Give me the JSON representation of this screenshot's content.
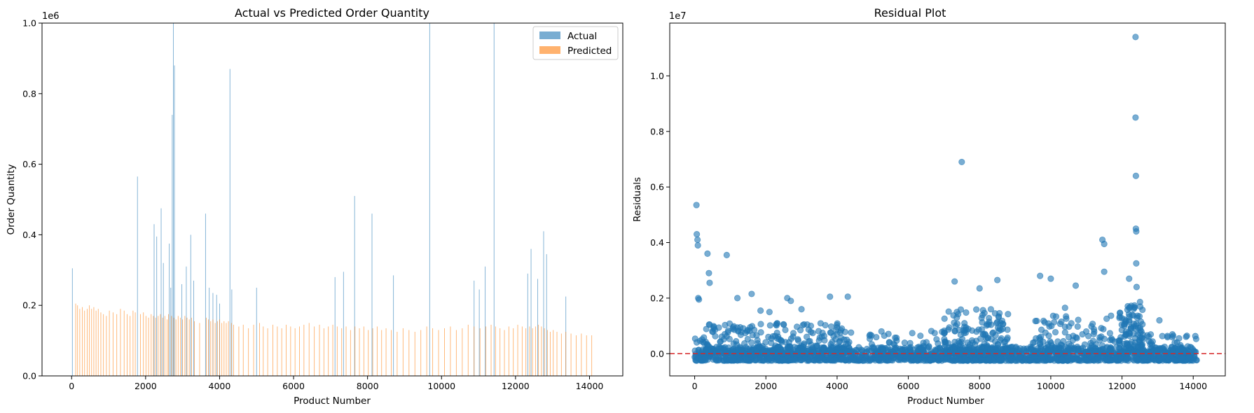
{
  "chart_data": [
    {
      "type": "bar",
      "title": "Actual vs Predicted Order Quantity",
      "xlabel": "Product Number",
      "ylabel": "Order Quantity",
      "xlim": [
        -800,
        14900
      ],
      "ylim": [
        0,
        1000000
      ],
      "y_offset_text": "1e6",
      "x_ticks": [
        0,
        2000,
        4000,
        6000,
        8000,
        10000,
        12000,
        14000
      ],
      "x_tick_labels": [
        "0",
        "2000",
        "4000",
        "6000",
        "8000",
        "10000",
        "12000",
        "14000"
      ],
      "y_ticks": [
        0,
        200000,
        400000,
        600000,
        800000,
        1000000
      ],
      "y_tick_labels": [
        "0.0",
        "0.2",
        "0.4",
        "0.6",
        "0.8",
        "1.0"
      ],
      "legend_position": "top-right",
      "series": [
        {
          "name": "Actual",
          "color": "#1f77b4",
          "opacity": 0.6,
          "x": [
            20,
            1780,
            2230,
            2300,
            2420,
            2480,
            2640,
            2680,
            2720,
            2750,
            2780,
            2980,
            3100,
            3220,
            3300,
            3620,
            3720,
            3820,
            3920,
            4000,
            4280,
            4330,
            5000,
            7120,
            7350,
            7650,
            8120,
            8700,
            9680,
            10880,
            11020,
            11180,
            11420,
            12330,
            12420,
            12600,
            12760,
            12840,
            13360
          ],
          "values": [
            305000,
            565000,
            430000,
            395000,
            475000,
            320000,
            375000,
            250000,
            740000,
            1000000,
            880000,
            260000,
            310000,
            400000,
            270000,
            460000,
            250000,
            235000,
            230000,
            205000,
            870000,
            245000,
            250000,
            280000,
            295000,
            510000,
            460000,
            285000,
            1000000,
            270000,
            245000,
            310000,
            1000000,
            290000,
            360000,
            275000,
            410000,
            345000,
            225000
          ]
        },
        {
          "name": "Predicted",
          "color": "#ff7f0e",
          "opacity": 0.6,
          "x": [
            110,
            160,
            220,
            290,
            350,
            420,
            480,
            540,
            600,
            660,
            720,
            790,
            860,
            940,
            1020,
            1120,
            1220,
            1320,
            1420,
            1500,
            1580,
            1660,
            1720,
            1860,
            1940,
            2010,
            2080,
            2150,
            2210,
            2270,
            2340,
            2400,
            2460,
            2520,
            2580,
            2620,
            2700,
            2760,
            2820,
            2880,
            2940,
            3000,
            3060,
            3120,
            3180,
            3240,
            3320,
            3460,
            3640,
            3700,
            3760,
            3820,
            3880,
            3940,
            4000,
            4060,
            4120,
            4180,
            4240,
            4320,
            4380,
            4520,
            4640,
            4780,
            4920,
            5080,
            5180,
            5300,
            5440,
            5560,
            5680,
            5800,
            5920,
            6040,
            6160,
            6280,
            6420,
            6560,
            6700,
            6820,
            6940,
            7060,
            7180,
            7300,
            7420,
            7540,
            7660,
            7780,
            7900,
            8020,
            8140,
            8260,
            8380,
            8500,
            8640,
            8800,
            8960,
            9120,
            9280,
            9440,
            9600,
            9760,
            9920,
            10080,
            10240,
            10400,
            10560,
            10720,
            10880,
            11040,
            11200,
            11340,
            11460,
            11580,
            11700,
            11820,
            11940,
            12060,
            12180,
            12280,
            12380,
            12460,
            12540,
            12620,
            12700,
            12780,
            12860,
            12940,
            13020,
            13120,
            13240,
            13360,
            13500,
            13640,
            13780,
            13920,
            14060
          ],
          "values": [
            205000,
            200000,
            190000,
            195000,
            185000,
            190000,
            200000,
            190000,
            195000,
            185000,
            190000,
            180000,
            175000,
            170000,
            185000,
            180000,
            175000,
            190000,
            185000,
            175000,
            170000,
            185000,
            180000,
            175000,
            180000,
            170000,
            165000,
            175000,
            170000,
            165000,
            170000,
            175000,
            165000,
            170000,
            160000,
            175000,
            170000,
            165000,
            160000,
            170000,
            165000,
            160000,
            170000,
            165000,
            160000,
            165000,
            155000,
            150000,
            165000,
            160000,
            155000,
            160000,
            150000,
            155000,
            160000,
            150000,
            155000,
            150000,
            155000,
            150000,
            145000,
            140000,
            145000,
            135000,
            145000,
            150000,
            140000,
            135000,
            145000,
            140000,
            135000,
            145000,
            140000,
            135000,
            140000,
            145000,
            150000,
            140000,
            145000,
            135000,
            140000,
            145000,
            140000,
            135000,
            140000,
            130000,
            140000,
            135000,
            140000,
            130000,
            135000,
            140000,
            130000,
            135000,
            130000,
            125000,
            135000,
            130000,
            125000,
            130000,
            140000,
            135000,
            130000,
            135000,
            140000,
            130000,
            135000,
            145000,
            140000,
            135000,
            140000,
            145000,
            140000,
            135000,
            130000,
            140000,
            135000,
            145000,
            140000,
            135000,
            140000,
            135000,
            140000,
            145000,
            140000,
            135000,
            130000,
            125000,
            130000,
            125000,
            120000,
            125000,
            120000,
            115000,
            120000,
            115000,
            115000
          ]
        }
      ]
    },
    {
      "type": "scatter",
      "title": "Residual Plot",
      "xlabel": "Product Number",
      "ylabel": "Residuals",
      "xlim": [
        -700,
        14900
      ],
      "ylim": [
        -800000,
        11900000
      ],
      "y_offset_text": "1e7",
      "x_ticks": [
        0,
        2000,
        4000,
        6000,
        8000,
        10000,
        12000,
        14000
      ],
      "x_tick_labels": [
        "0",
        "2000",
        "4000",
        "6000",
        "8000",
        "10000",
        "12000",
        "14000"
      ],
      "y_ticks": [
        0,
        2000000,
        4000000,
        6000000,
        8000000,
        10000000
      ],
      "y_tick_labels": [
        "0.0",
        "0.2",
        "0.4",
        "0.6",
        "0.8",
        "1.0"
      ],
      "reference_line": {
        "y": 0,
        "color": "#d62728",
        "style": "dashed"
      },
      "series": [
        {
          "color": "#1f77b4",
          "opacity": 0.6,
          "outliers": {
            "x": [
              50,
              60,
              80,
              90,
              100,
              120,
              360,
              400,
              420,
              900,
              1200,
              1600,
              1850,
              2100,
              2600,
              2700,
              3000,
              3800,
              4300,
              7300,
              7500,
              8000,
              8500,
              9700,
              10000,
              10400,
              10700,
              11450,
              11500,
              11500,
              12200,
              12380,
              12380,
              12390,
              12390,
              12400,
              12400,
              12410,
              13050
            ],
            "y": [
              5350000,
              4300000,
              4100000,
              3900000,
              2000000,
              1950000,
              3600000,
              2900000,
              2550000,
              3550000,
              2000000,
              2150000,
              1550000,
              1500000,
              2000000,
              1900000,
              1600000,
              2050000,
              2050000,
              2600000,
              6900000,
              2350000,
              2650000,
              2800000,
              2700000,
              1650000,
              2450000,
              4100000,
              3950000,
              2950000,
              2700000,
              11400000,
              8500000,
              6400000,
              4500000,
              4400000,
              3250000,
              2400000,
              1200000
            ]
          },
          "bands": [
            {
              "x": [
                0,
                14100
              ],
              "ymin": -250000,
              "ymax": 250000,
              "count": 1600
            },
            {
              "x": [
                0,
                4400
              ],
              "ymin": 0,
              "ymax": 1100000,
              "count": 260
            },
            {
              "x": [
                4800,
                7000
              ],
              "ymin": -100000,
              "ymax": 900000,
              "count": 70
            },
            {
              "x": [
                7000,
                8800
              ],
              "ymin": 0,
              "ymax": 1600000,
              "count": 180
            },
            {
              "x": [
                9500,
                11800
              ],
              "ymin": 0,
              "ymax": 1400000,
              "count": 130
            },
            {
              "x": [
                11900,
                12600
              ],
              "ymin": 0,
              "ymax": 1900000,
              "count": 120
            },
            {
              "x": [
                12600,
                14100
              ],
              "ymin": -150000,
              "ymax": 700000,
              "count": 70
            }
          ]
        }
      ]
    }
  ]
}
